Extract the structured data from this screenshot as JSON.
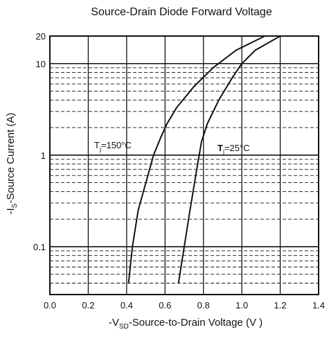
{
  "chart_data": {
    "type": "line",
    "title": "Source-Drain Diode Forward Voltage",
    "xlabel": {
      "prefix": "-V",
      "sub": "SD",
      "suffix": "-Source-to-Drain Voltage (V )"
    },
    "ylabel": {
      "prefix": "-I",
      "sub": "S",
      "suffix": "-Source Current (A)"
    },
    "xlim": [
      0.0,
      1.4
    ],
    "ylim": [
      0.03,
      20
    ],
    "yscale": "log",
    "grid": true,
    "x_ticks": [
      "0.0",
      "0.2",
      "0.4",
      "0.6",
      "0.8",
      "1.0",
      "1.2",
      "1.4"
    ],
    "y_ticks": [
      {
        "value": 0.1,
        "label": "0.1"
      },
      {
        "value": 1,
        "label": "1"
      },
      {
        "value": 10,
        "label": "10"
      },
      {
        "value": 20,
        "label": "20"
      }
    ],
    "series": [
      {
        "annotation": {
          "prefix": "T",
          "sub": "j",
          "suffix": "=150°C"
        },
        "points": [
          [
            0.41,
            0.04
          ],
          [
            0.43,
            0.1
          ],
          [
            0.46,
            0.25
          ],
          [
            0.5,
            0.5
          ],
          [
            0.54,
            1.0
          ],
          [
            0.58,
            1.6
          ],
          [
            0.61,
            2.2
          ],
          [
            0.66,
            3.3
          ],
          [
            0.75,
            5.6
          ],
          [
            0.85,
            9.0
          ],
          [
            0.97,
            14.0
          ],
          [
            1.12,
            20.0
          ]
        ]
      },
      {
        "annotation": {
          "prefix": "T",
          "sub": "j",
          "suffix": "=25°C"
        },
        "points": [
          [
            0.67,
            0.04
          ],
          [
            0.7,
            0.1
          ],
          [
            0.73,
            0.25
          ],
          [
            0.76,
            0.6
          ],
          [
            0.79,
            1.4
          ],
          [
            0.82,
            2.2
          ],
          [
            0.88,
            4.0
          ],
          [
            0.95,
            7.0
          ],
          [
            1.0,
            10.0
          ],
          [
            1.07,
            14.0
          ],
          [
            1.2,
            20.0
          ]
        ]
      }
    ]
  }
}
